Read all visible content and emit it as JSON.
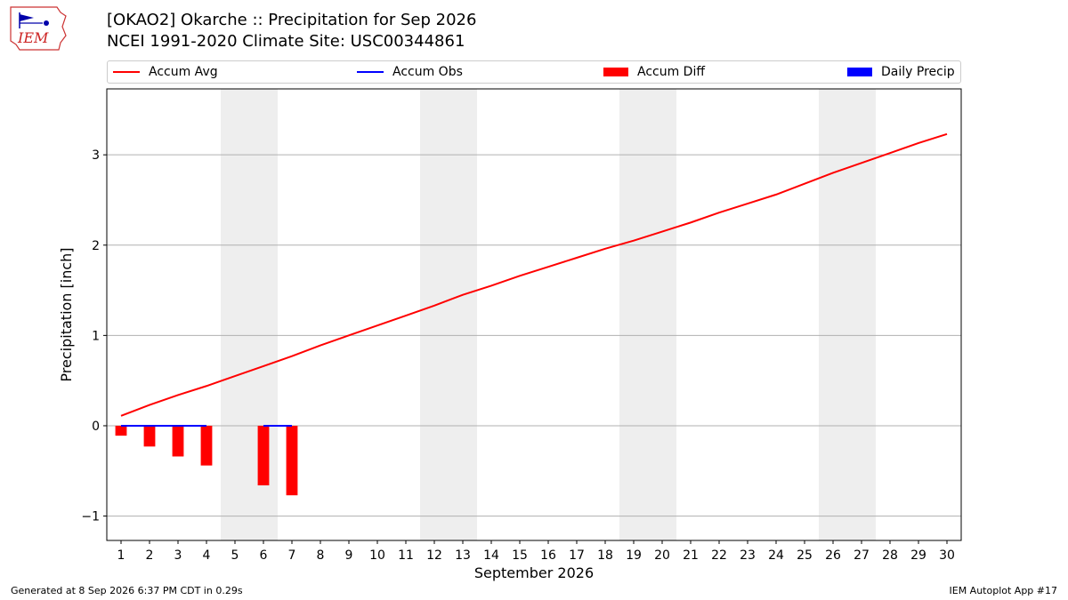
{
  "title_line1": "[OKAO2] Okarche :: Precipitation for Sep 2026",
  "title_line2": "NCEI 1991-2020 Climate Site: USC00344861",
  "logo_text": "IEM",
  "legend": {
    "accum_avg": "Accum Avg",
    "accum_obs": "Accum Obs",
    "accum_diff": "Accum Diff",
    "daily_precip": "Daily Precip"
  },
  "colors": {
    "accum_avg": "#ff0000",
    "accum_obs": "#0000ff",
    "accum_diff": "#ff0000",
    "daily_precip": "#0000ff",
    "weekend_shade": "#eeeeee",
    "grid": "#b0b0b0"
  },
  "footer_left": "Generated at 8 Sep 2026 6:37 PM CDT in 0.29s",
  "footer_right": "IEM Autoplot App #17",
  "chart_data": {
    "type": "line",
    "xlabel": "September 2026",
    "ylabel": "Precipitation [inch]",
    "x": [
      1,
      2,
      3,
      4,
      5,
      6,
      7,
      8,
      9,
      10,
      11,
      12,
      13,
      14,
      15,
      16,
      17,
      18,
      19,
      20,
      21,
      22,
      23,
      24,
      25,
      26,
      27,
      28,
      29,
      30
    ],
    "x_tick_labels": [
      "1",
      "2",
      "3",
      "4",
      "5",
      "6",
      "7",
      "8",
      "9",
      "10",
      "11",
      "12",
      "13",
      "14",
      "15",
      "16",
      "17",
      "18",
      "19",
      "20",
      "21",
      "22",
      "23",
      "24",
      "25",
      "26",
      "27",
      "28",
      "29",
      "30"
    ],
    "xlim": [
      0.5,
      30.5
    ],
    "ylim": [
      -1.27,
      3.73
    ],
    "y_ticks": [
      -1,
      0,
      1,
      2,
      3
    ],
    "y_tick_labels": [
      "−1",
      "0",
      "1",
      "2",
      "3"
    ],
    "grid": "horizontal",
    "legend_position": "top",
    "weekend_shaded_days": [
      [
        5,
        6
      ],
      [
        12,
        13
      ],
      [
        19,
        20
      ],
      [
        26,
        27
      ]
    ],
    "series": [
      {
        "name": "Accum Avg",
        "kind": "line",
        "values": [
          0.11,
          0.23,
          0.34,
          0.44,
          0.55,
          0.66,
          0.77,
          0.89,
          1.0,
          1.11,
          1.22,
          1.33,
          1.45,
          1.55,
          1.66,
          1.76,
          1.86,
          1.96,
          2.05,
          2.15,
          2.25,
          2.36,
          2.46,
          2.56,
          2.68,
          2.8,
          2.91,
          3.02,
          3.13,
          3.23
        ]
      },
      {
        "name": "Accum Obs",
        "kind": "line",
        "segments": [
          {
            "x": [
              1,
              2,
              3,
              4
            ],
            "values": [
              0,
              0,
              0,
              0
            ]
          },
          {
            "x": [
              6,
              7
            ],
            "values": [
              0,
              0
            ]
          }
        ]
      },
      {
        "name": "Accum Diff",
        "kind": "bar",
        "x": [
          1,
          2,
          3,
          4,
          6,
          7
        ],
        "values": [
          -0.11,
          -0.23,
          -0.34,
          -0.44,
          -0.66,
          -0.77
        ]
      },
      {
        "name": "Daily Precip",
        "kind": "bar",
        "x": [],
        "values": []
      }
    ]
  }
}
